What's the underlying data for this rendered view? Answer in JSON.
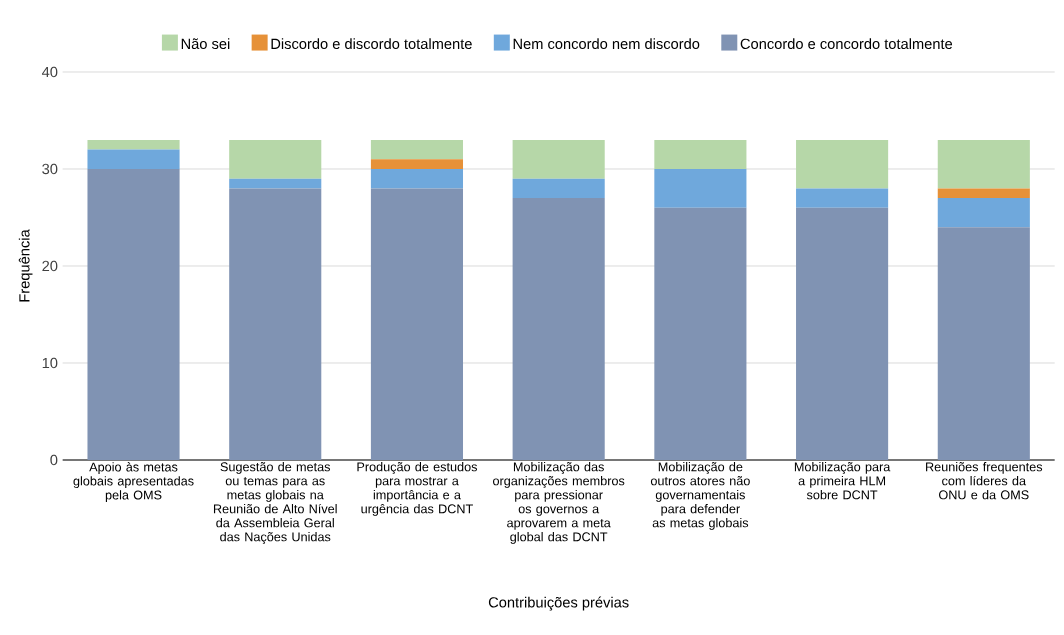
{
  "chart_data": {
    "type": "bar",
    "stacked": true,
    "xlabel": "Contribuições prévias",
    "ylabel": "Frequência",
    "categories": [
      "Apoio às metas globais apresentadas pela OMS",
      "Sugestão de metas ou temas para as metas globais na Reunião de Alto Nível da Assembleia Geral das Nações Unidas",
      "Produção de estudos para mostrar a importância e a urgência das DCNT",
      "Mobilização das organizações membros para pressionar os governos a aprovarem a meta global das DCNT",
      "Mobilização de outros atores não governamentais para defender as metas globais",
      "Mobilização para a primeira HLM sobre DCNT",
      "Reuniões frequentes com líderes da ONU e da OMS"
    ],
    "series": [
      {
        "name": "Concordo e concordo totalmente",
        "color": "#8093b3",
        "values": [
          30,
          28,
          28,
          27,
          26,
          26,
          24
        ]
      },
      {
        "name": "Nem concordo nem discordo",
        "color": "#6fa8dc",
        "values": [
          2,
          1,
          2,
          2,
          4,
          2,
          3
        ]
      },
      {
        "name": "Discordo e discordo totalmente",
        "color": "#e69138",
        "values": [
          0,
          0,
          1,
          0,
          0,
          0,
          1
        ]
      },
      {
        "name": "Não sei",
        "color": "#b6d7a8",
        "values": [
          1,
          4,
          2,
          4,
          3,
          5,
          5
        ]
      }
    ],
    "ylim": [
      0,
      40
    ],
    "yticks": [
      0,
      10,
      20,
      30,
      40
    ],
    "grid": "y",
    "legend": "top"
  }
}
